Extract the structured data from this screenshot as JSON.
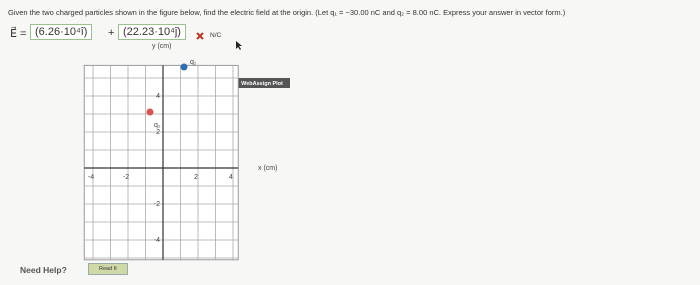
{
  "question": {
    "prompt": "Given the two charged particles shown in the figure below, find the electric field at the origin. (Let q₁ = −30.00 nC and q₂ = 8.00 nC. Express your answer in vector form.)",
    "answer_label": "E⃗ =",
    "answer_i": "(6.26·10⁴î)",
    "plus": "+",
    "answer_j": "(22.23·10⁴ĵ)",
    "unit": "N/C"
  },
  "figure": {
    "y_axis_label": "y (cm)",
    "x_axis_label": "x (cm)",
    "plot_label": "WebAssign Plot",
    "charge_labels": [
      "q₁",
      "q₂"
    ],
    "x_tick_labels": [
      "-4",
      "-2",
      "2",
      "4"
    ],
    "y_tick_labels": [
      "4",
      "2",
      "-2",
      "-4"
    ]
  },
  "help": {
    "label": "Need Help?",
    "button": "Read It"
  }
}
